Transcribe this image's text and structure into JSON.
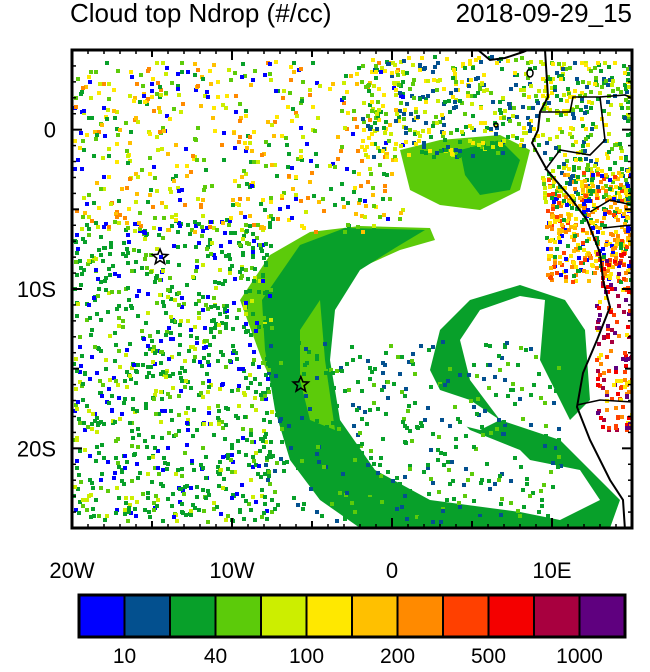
{
  "title": "Cloud top Ndrop (#/cc)",
  "timestamp": "2018-09-29_15",
  "map": {
    "lon_range": [
      -20,
      15
    ],
    "lat_range": [
      -25,
      5
    ],
    "x_ticks": [
      {
        "value": -20,
        "label": "20W"
      },
      {
        "value": -10,
        "label": "10W"
      },
      {
        "value": 0,
        "label": "0"
      },
      {
        "value": 10,
        "label": "10E"
      }
    ],
    "y_ticks": [
      {
        "value": 0,
        "label": "0"
      },
      {
        "value": -10,
        "label": "10S"
      },
      {
        "value": -20,
        "label": "20S"
      }
    ],
    "markers": [
      {
        "name": "star",
        "lon": -14.5,
        "lat": -8
      },
      {
        "name": "star",
        "lon": -5.7,
        "lat": -16
      }
    ]
  },
  "colorbar": {
    "colors": [
      "#0000ff",
      "#03508f",
      "#08a02a",
      "#5ccb0a",
      "#ccee00",
      "#ffe800",
      "#ffc000",
      "#ff8a00",
      "#ff4000",
      "#f40000",
      "#a8003f",
      "#5f007f"
    ],
    "labels": [
      {
        "after_box": 1,
        "text": "10"
      },
      {
        "after_box": 3,
        "text": "40"
      },
      {
        "after_box": 5,
        "text": "100"
      },
      {
        "after_box": 7,
        "text": "200"
      },
      {
        "after_box": 9,
        "text": "500"
      },
      {
        "after_box": 11,
        "text": "1000"
      }
    ]
  }
}
